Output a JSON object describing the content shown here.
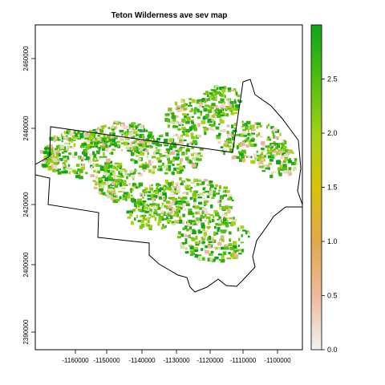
{
  "chart_data": {
    "type": "heatmap",
    "title": "Teton Wilderness ave sev map",
    "xlabel": "",
    "ylabel": "",
    "x_ticks": [
      "-1160000",
      "-1150000",
      "-1140000",
      "-1130000",
      "-1120000",
      "-1110000",
      "-1100000"
    ],
    "y_ticks": [
      "2390000",
      "2400000",
      "2420000",
      "2440000",
      "2460000"
    ],
    "legend": {
      "position": "right",
      "min": 0.0,
      "max": 3.0,
      "ticks": [
        "0.0",
        "0.5",
        "1.0",
        "1.5",
        "2.0",
        "2.5"
      ],
      "colors": [
        "#f2f2f2",
        "#edbc9f",
        "#e2a84e",
        "#d9c20a",
        "#a6d116",
        "#4fbf10",
        "#0ea51a"
      ]
    },
    "grid": false
  }
}
